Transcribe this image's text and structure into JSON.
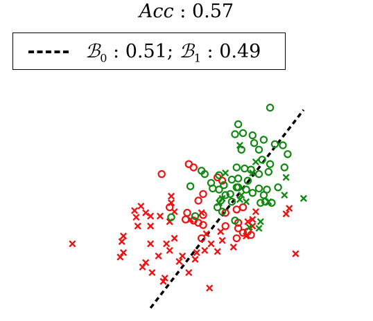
{
  "chart_data": {
    "type": "scatter",
    "title": {
      "label": "Acc",
      "value": "0.57"
    },
    "legend": {
      "placement": "top",
      "entry": {
        "style": "dashed",
        "b0_label": "ℬ",
        "b0_sub": "0",
        "b0_value": "0.51",
        "b1_label": "ℬ",
        "b1_sub": "1",
        "b1_value": "0.49"
      }
    },
    "xlim": [
      0,
      10
    ],
    "ylim": [
      0,
      10
    ],
    "grid": false,
    "axes_visible": false,
    "boundary": {
      "style": "dashed",
      "color": "#000000",
      "points": [
        [
          3.85,
          0.15
        ],
        [
          8.65,
          9.1
        ]
      ]
    },
    "colors": {
      "class0": "#ee1111",
      "class1": "#118811"
    },
    "series": [
      {
        "color": "class0",
        "marker": "o",
        "points": [
          [
            4.2,
            6.2
          ],
          [
            5.05,
            6.65
          ],
          [
            5.2,
            6.5
          ],
          [
            5.95,
            6.05
          ],
          [
            6.1,
            5.9
          ],
          [
            5.5,
            5.3
          ],
          [
            4.45,
            4.7
          ],
          [
            5.0,
            4.45
          ],
          [
            5.5,
            4.35
          ],
          [
            6.2,
            4.45
          ],
          [
            6.55,
            4.6
          ],
          [
            6.75,
            4.7
          ],
          [
            6.2,
            3.85
          ],
          [
            6.6,
            4.0
          ],
          [
            6.6,
            3.75
          ],
          [
            6.75,
            3.55
          ],
          [
            5.2,
            4.1
          ],
          [
            4.95,
            4.15
          ],
          [
            5.35,
            4.0
          ],
          [
            5.5,
            3.9
          ],
          [
            5.45,
            3.3
          ],
          [
            6.55,
            3.3
          ],
          [
            6.9,
            3.6
          ],
          [
            7.0,
            3.45
          ],
          [
            5.35,
            5.0
          ]
        ]
      },
      {
        "color": "class0",
        "marker": "x",
        "points": [
          [
            1.4,
            3.05
          ],
          [
            2.95,
            3.15
          ],
          [
            3.0,
            3.4
          ],
          [
            3.4,
            4.25
          ],
          [
            3.45,
            3.85
          ],
          [
            3.85,
            3.85
          ],
          [
            3.7,
            4.45
          ],
          [
            3.35,
            4.55
          ],
          [
            3.85,
            4.3
          ],
          [
            4.5,
            5.2
          ],
          [
            4.5,
            4.9
          ],
          [
            4.15,
            4.3
          ],
          [
            4.45,
            4.05
          ],
          [
            4.6,
            4.5
          ],
          [
            5.1,
            4.15
          ],
          [
            4.6,
            3.3
          ],
          [
            4.35,
            3.05
          ],
          [
            4.45,
            2.75
          ],
          [
            4.1,
            2.5
          ],
          [
            3.85,
            3.05
          ],
          [
            3.55,
            4.75
          ],
          [
            3.7,
            2.2
          ],
          [
            3.6,
            2.0
          ],
          [
            3.9,
            1.75
          ],
          [
            4.75,
            2.25
          ],
          [
            4.85,
            2.5
          ],
          [
            5.25,
            2.35
          ],
          [
            5.05,
            1.75
          ],
          [
            5.3,
            2.65
          ],
          [
            5.55,
            2.75
          ],
          [
            6.05,
            3.6
          ],
          [
            6.1,
            3.2
          ],
          [
            5.75,
            3.05
          ],
          [
            5.95,
            2.7
          ],
          [
            6.45,
            2.9
          ],
          [
            6.85,
            3.4
          ],
          [
            7.05,
            4.15
          ],
          [
            7.15,
            4.5
          ],
          [
            7.05,
            3.85
          ],
          [
            6.9,
            4.05
          ],
          [
            8.2,
            4.65
          ],
          [
            8.1,
            4.4
          ],
          [
            8.4,
            2.6
          ],
          [
            5.45,
            4.45
          ],
          [
            2.9,
            2.45
          ],
          [
            3.0,
            2.65
          ],
          [
            5.6,
            3.5
          ],
          [
            4.25,
            1.35
          ],
          [
            4.3,
            1.5
          ],
          [
            5.7,
            1.05
          ]
        ]
      },
      {
        "color": "class1",
        "marker": "o",
        "points": [
          [
            7.6,
            9.2
          ],
          [
            6.6,
            8.45
          ],
          [
            6.5,
            8.0
          ],
          [
            6.75,
            8.05
          ],
          [
            7.05,
            7.95
          ],
          [
            7.4,
            7.75
          ],
          [
            7.1,
            7.6
          ],
          [
            6.7,
            7.3
          ],
          [
            7.25,
            7.3
          ],
          [
            7.75,
            7.55
          ],
          [
            8.0,
            7.5
          ],
          [
            8.15,
            7.1
          ],
          [
            8.05,
            6.5
          ],
          [
            7.35,
            6.85
          ],
          [
            7.6,
            6.65
          ],
          [
            7.55,
            6.3
          ],
          [
            7.25,
            6.2
          ],
          [
            7.0,
            6.4
          ],
          [
            6.8,
            6.45
          ],
          [
            6.55,
            6.5
          ],
          [
            6.6,
            6.0
          ],
          [
            6.9,
            5.9
          ],
          [
            6.4,
            5.95
          ],
          [
            6.15,
            5.7
          ],
          [
            5.75,
            5.8
          ],
          [
            5.8,
            5.55
          ],
          [
            6.0,
            5.5
          ],
          [
            6.35,
            5.3
          ],
          [
            6.6,
            5.6
          ],
          [
            6.85,
            5.5
          ],
          [
            7.05,
            5.35
          ],
          [
            7.25,
            5.55
          ],
          [
            7.4,
            5.25
          ],
          [
            7.5,
            5.5
          ],
          [
            7.45,
            4.95
          ],
          [
            7.85,
            5.6
          ],
          [
            7.65,
            4.9
          ],
          [
            6.55,
            5.6
          ],
          [
            6.2,
            5.25
          ],
          [
            6.05,
            5.0
          ],
          [
            5.95,
            4.7
          ],
          [
            6.1,
            4.5
          ],
          [
            6.4,
            4.95
          ],
          [
            5.25,
            4.3
          ],
          [
            5.55,
            6.2
          ],
          [
            5.45,
            6.35
          ],
          [
            4.5,
            4.25
          ],
          [
            6.0,
            6.15
          ],
          [
            5.1,
            5.65
          ],
          [
            6.5,
            4.1
          ],
          [
            7.3,
            4.9
          ]
        ]
      },
      {
        "color": "class1",
        "marker": "x",
        "points": [
          [
            6.65,
            7.5
          ],
          [
            7.15,
            6.75
          ],
          [
            7.05,
            6.25
          ],
          [
            6.7,
            5.25
          ],
          [
            6.65,
            5.05
          ],
          [
            6.85,
            4.95
          ],
          [
            7.55,
            4.95
          ],
          [
            8.05,
            5.25
          ],
          [
            8.65,
            5.1
          ],
          [
            8.1,
            6.05
          ],
          [
            7.3,
            4.05
          ],
          [
            7.25,
            3.75
          ],
          [
            6.95,
            3.8
          ],
          [
            6.1,
            5.1
          ],
          [
            6.0,
            4.9
          ],
          [
            6.2,
            6.25
          ]
        ]
      }
    ]
  }
}
